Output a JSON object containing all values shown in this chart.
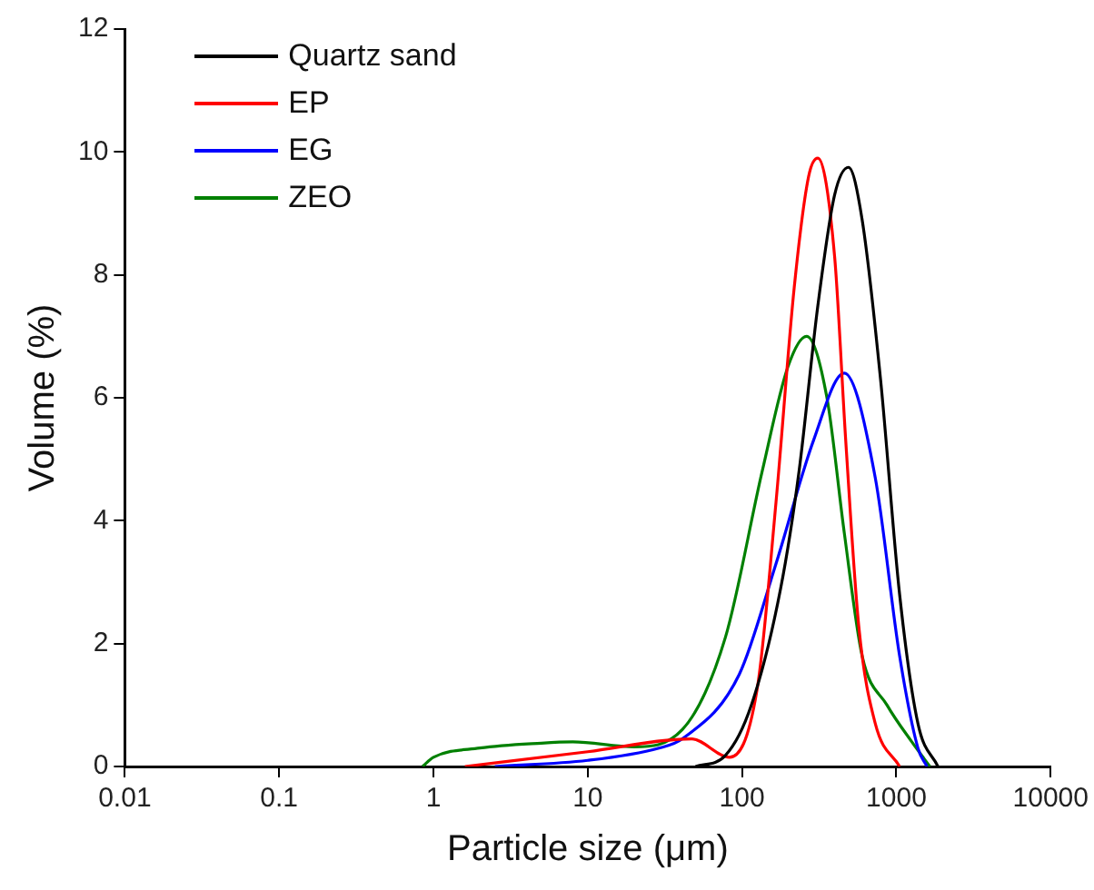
{
  "chart_data": {
    "type": "line",
    "xlabel": "Particle size (μm)",
    "ylabel": "Volume (%)",
    "log": "x",
    "xlim": [
      0.01,
      10000
    ],
    "xticks": [
      0.01,
      0.1,
      1,
      10,
      100,
      1000,
      10000
    ],
    "ylim": [
      0,
      12
    ],
    "yticks": [
      0,
      2,
      4,
      6,
      8,
      10,
      12
    ],
    "grid": false,
    "legend": "top left",
    "marker": "none",
    "line_style": "solid",
    "series": [
      {
        "name": "Quartz sand",
        "color": "#000000",
        "x": [
          50,
          78,
          115,
          178,
          234,
          310,
          398,
          490,
          600,
          790,
          1050,
          1380,
          1860
        ],
        "values": [
          0,
          0.18,
          1.0,
          2.9,
          4.8,
          7.5,
          9.3,
          9.75,
          8.9,
          6.3,
          2.8,
          0.7,
          0
        ]
      },
      {
        "name": "EP",
        "color": "#ff0000",
        "x": [
          1.6,
          10,
          47,
          83,
          126,
          166,
          218,
          270,
          310,
          398,
          470,
          570,
          730,
          1050
        ],
        "values": [
          0,
          0.24,
          0.45,
          0.15,
          1.3,
          4.3,
          7.8,
          9.6,
          9.9,
          8.3,
          5.3,
          2.3,
          0.7,
          0
        ]
      },
      {
        "name": "EG",
        "color": "#0000ff",
        "x": [
          2.5,
          10,
          29,
          41,
          96,
          166,
          290,
          460,
          730,
          1050,
          1380,
          1580
        ],
        "values": [
          0,
          0.1,
          0.3,
          0.45,
          1.5,
          3.3,
          5.3,
          6.4,
          4.7,
          1.8,
          0.3,
          0
        ]
      },
      {
        "name": "ZEO",
        "color": "#008000",
        "x": [
          0.85,
          1,
          2,
          5,
          8,
          20,
          41,
          78,
          135,
          198,
          262,
          355,
          460,
          600,
          870,
          1260,
          1650
        ],
        "values": [
          0,
          0.15,
          0.3,
          0.38,
          0.4,
          0.32,
          0.6,
          2.1,
          4.8,
          6.5,
          7.0,
          6.0,
          3.8,
          1.8,
          1.0,
          0.4,
          0
        ]
      }
    ]
  }
}
